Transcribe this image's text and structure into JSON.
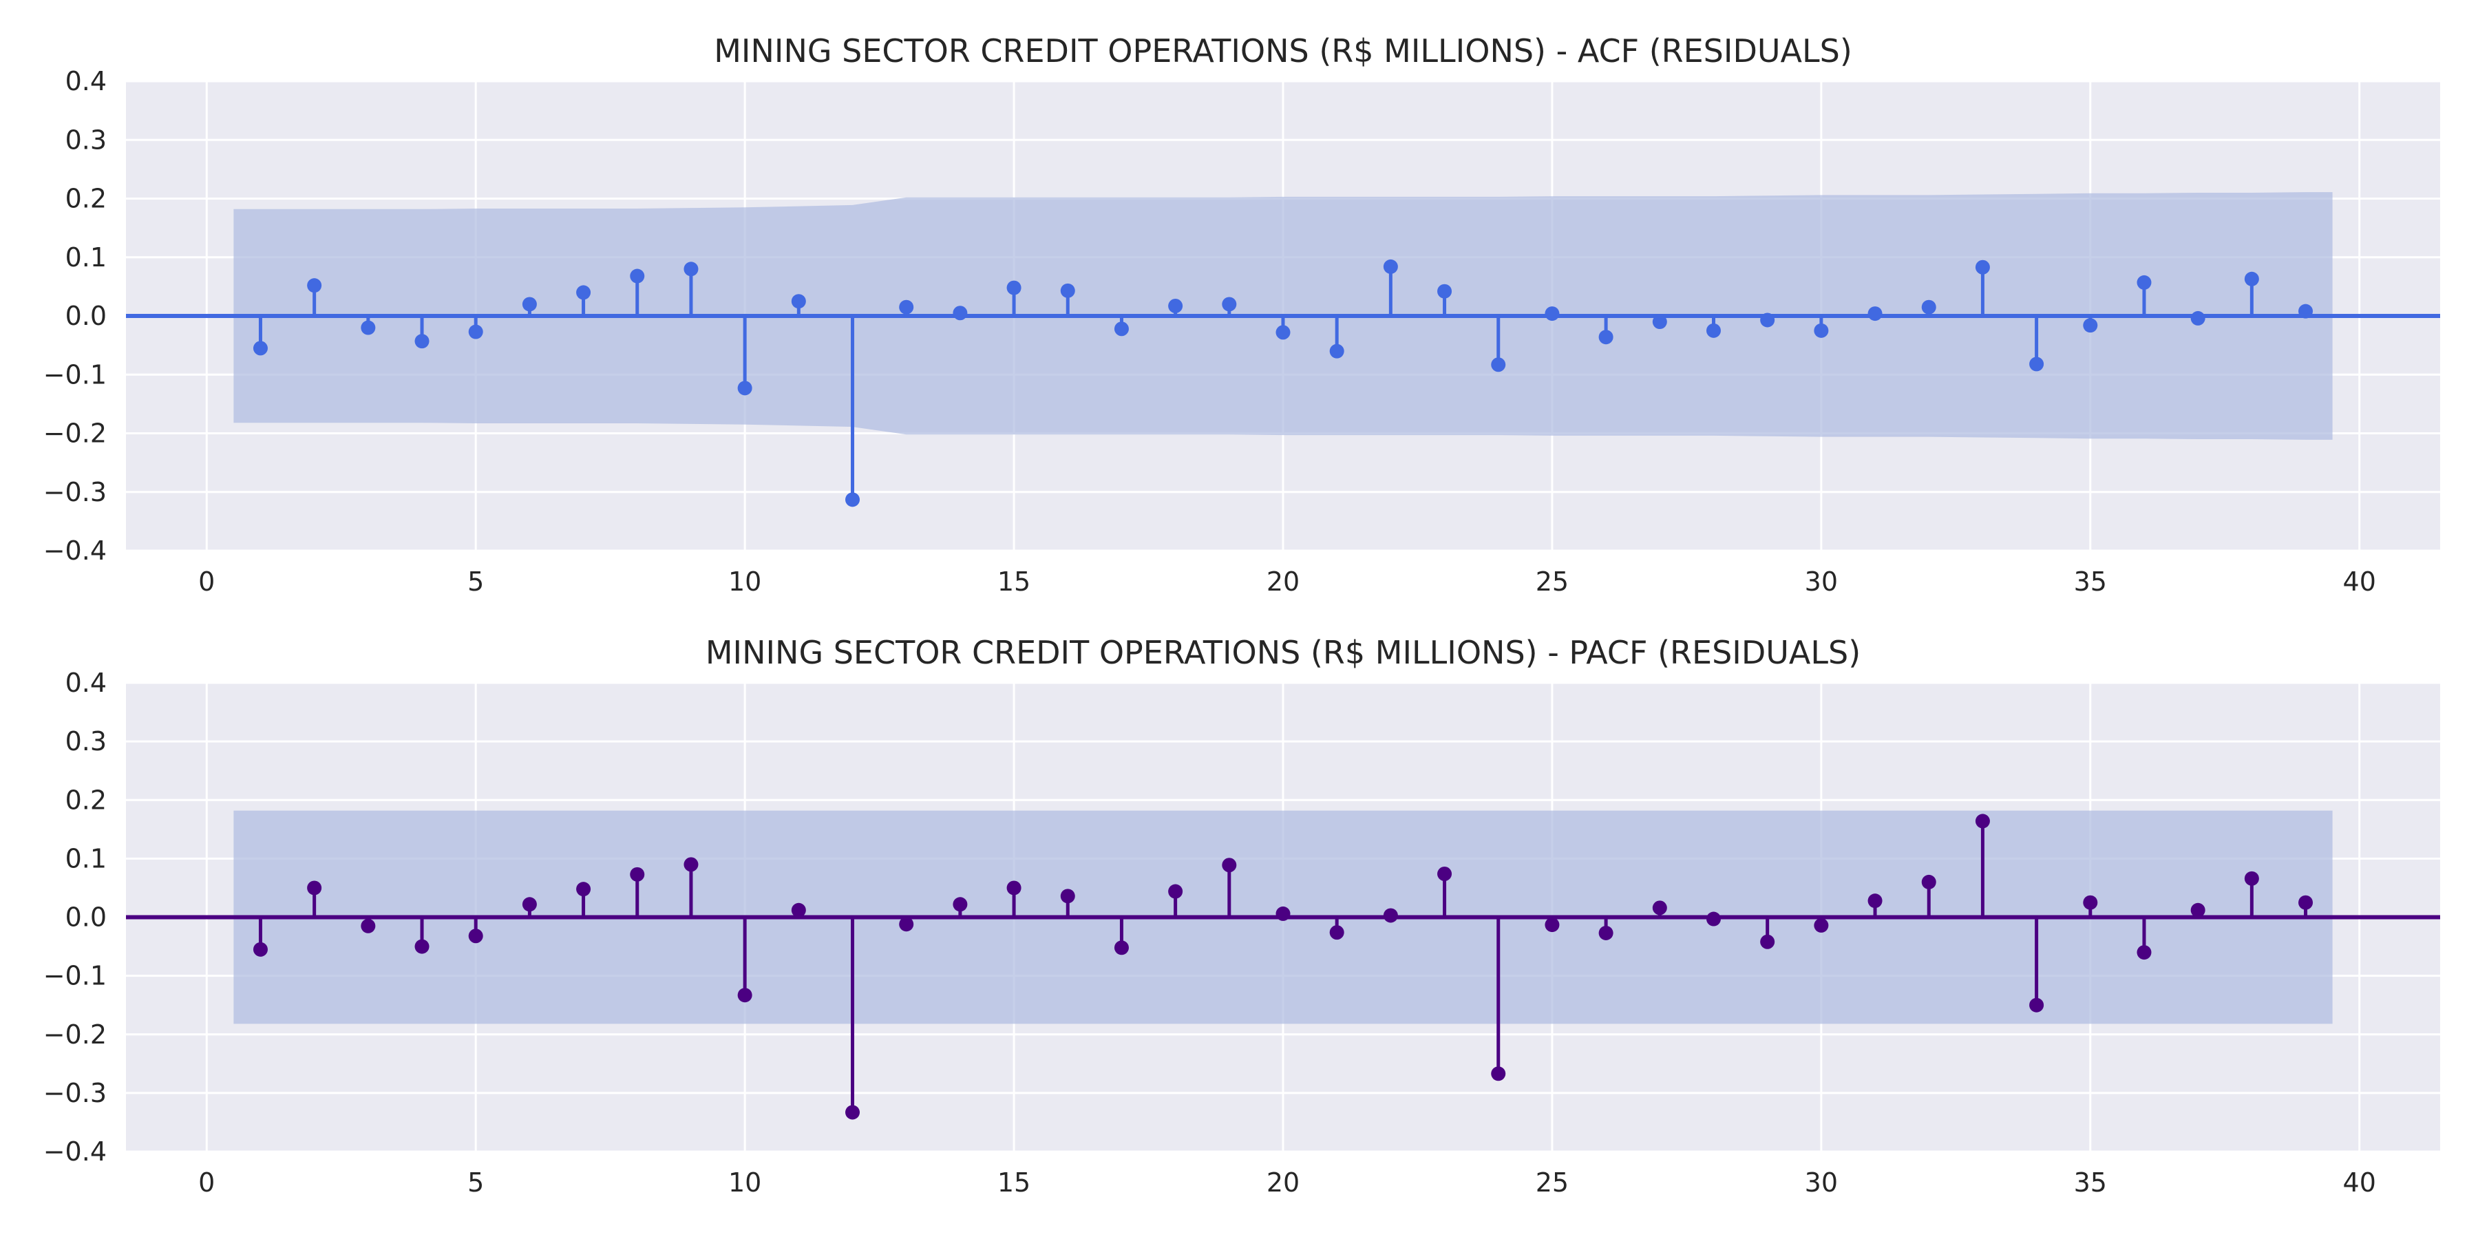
{
  "chart_data": [
    {
      "type": "stem",
      "title": "MINING SECTOR CREDIT OPERATIONS (R$ MILLIONS) - ACF (RESIDUALS)",
      "xlabel": "",
      "ylabel": "",
      "xlim": [
        -1.5,
        41.5
      ],
      "ylim": [
        -0.4,
        0.4
      ],
      "xticks": [
        0,
        5,
        10,
        15,
        20,
        25,
        30,
        35,
        40
      ],
      "yticks": [
        0.4,
        0.3,
        0.2,
        0.1,
        0.0,
        -0.1,
        -0.2,
        -0.3,
        -0.4
      ],
      "ytick_labels": [
        "0.4",
        "0.3",
        "0.2",
        "0.1",
        "0.0",
        "−0.1",
        "−0.2",
        "−0.3",
        "−0.4"
      ],
      "xtick_labels": [
        "0",
        "5",
        "10",
        "15",
        "20",
        "25",
        "30",
        "35",
        "40"
      ],
      "grid": true,
      "color": "#4169e1",
      "band_color": "#b0bde0",
      "lags": [
        1,
        2,
        3,
        4,
        5,
        6,
        7,
        8,
        9,
        10,
        11,
        12,
        13,
        14,
        15,
        16,
        17,
        18,
        19,
        20,
        21,
        22,
        23,
        24,
        25,
        26,
        27,
        28,
        29,
        30,
        31,
        32,
        33,
        34,
        35,
        36,
        37,
        38,
        39
      ],
      "values": [
        -0.055,
        0.052,
        -0.02,
        -0.043,
        -0.027,
        0.02,
        0.04,
        0.068,
        0.08,
        -0.123,
        0.025,
        -0.313,
        0.015,
        0.005,
        0.048,
        0.043,
        -0.022,
        0.017,
        0.02,
        -0.028,
        -0.06,
        0.084,
        0.042,
        -0.083,
        0.004,
        -0.036,
        -0.01,
        -0.025,
        -0.007,
        -0.025,
        0.004,
        0.015,
        0.083,
        -0.082,
        -0.016,
        0.057,
        -0.004,
        0.063,
        0.008
      ],
      "confint_x": [
        0.5,
        1,
        2,
        3,
        4,
        5,
        6,
        7,
        8,
        9,
        10,
        11,
        12,
        13,
        14,
        15,
        16,
        17,
        18,
        19,
        20,
        21,
        22,
        23,
        24,
        25,
        26,
        27,
        28,
        29,
        30,
        31,
        32,
        33,
        34,
        35,
        36,
        37,
        38,
        39,
        39.5
      ],
      "confint_upper": [
        0.182,
        0.182,
        0.182,
        0.182,
        0.182,
        0.183,
        0.183,
        0.183,
        0.183,
        0.184,
        0.185,
        0.187,
        0.189,
        0.202,
        0.202,
        0.202,
        0.202,
        0.202,
        0.202,
        0.202,
        0.203,
        0.203,
        0.203,
        0.203,
        0.203,
        0.204,
        0.204,
        0.204,
        0.204,
        0.205,
        0.206,
        0.206,
        0.206,
        0.207,
        0.208,
        0.209,
        0.209,
        0.21,
        0.21,
        0.211,
        0.211
      ]
    },
    {
      "type": "stem",
      "title": "MINING SECTOR CREDIT OPERATIONS (R$ MILLIONS) - PACF (RESIDUALS)",
      "xlabel": "",
      "ylabel": "",
      "xlim": [
        -1.5,
        41.5
      ],
      "ylim": [
        -0.4,
        0.4
      ],
      "xticks": [
        0,
        5,
        10,
        15,
        20,
        25,
        30,
        35,
        40
      ],
      "yticks": [
        0.4,
        0.3,
        0.2,
        0.1,
        0.0,
        -0.1,
        -0.2,
        -0.3,
        -0.4
      ],
      "ytick_labels": [
        "0.4",
        "0.3",
        "0.2",
        "0.1",
        "0.0",
        "−0.1",
        "−0.2",
        "−0.3",
        "−0.4"
      ],
      "xtick_labels": [
        "0",
        "5",
        "10",
        "15",
        "20",
        "25",
        "30",
        "35",
        "40"
      ],
      "grid": true,
      "color": "#4b0082",
      "band_color": "#b0bde0",
      "lags": [
        1,
        2,
        3,
        4,
        5,
        6,
        7,
        8,
        9,
        10,
        11,
        12,
        13,
        14,
        15,
        16,
        17,
        18,
        19,
        20,
        21,
        22,
        23,
        24,
        25,
        26,
        27,
        28,
        29,
        30,
        31,
        32,
        33,
        34,
        35,
        36,
        37,
        38,
        39
      ],
      "values": [
        -0.055,
        0.05,
        -0.015,
        -0.05,
        -0.032,
        0.022,
        0.048,
        0.073,
        0.09,
        -0.133,
        0.012,
        -0.333,
        -0.012,
        0.022,
        0.05,
        0.036,
        -0.052,
        0.044,
        0.089,
        0.006,
        -0.026,
        0.003,
        0.074,
        -0.267,
        -0.013,
        -0.027,
        0.016,
        -0.003,
        -0.042,
        -0.014,
        0.028,
        0.06,
        0.164,
        -0.15,
        0.025,
        -0.06,
        0.012,
        0.066,
        0.025
      ],
      "confint_x": [
        0.5,
        39.5
      ],
      "confint_upper": [
        0.182,
        0.182
      ]
    }
  ]
}
